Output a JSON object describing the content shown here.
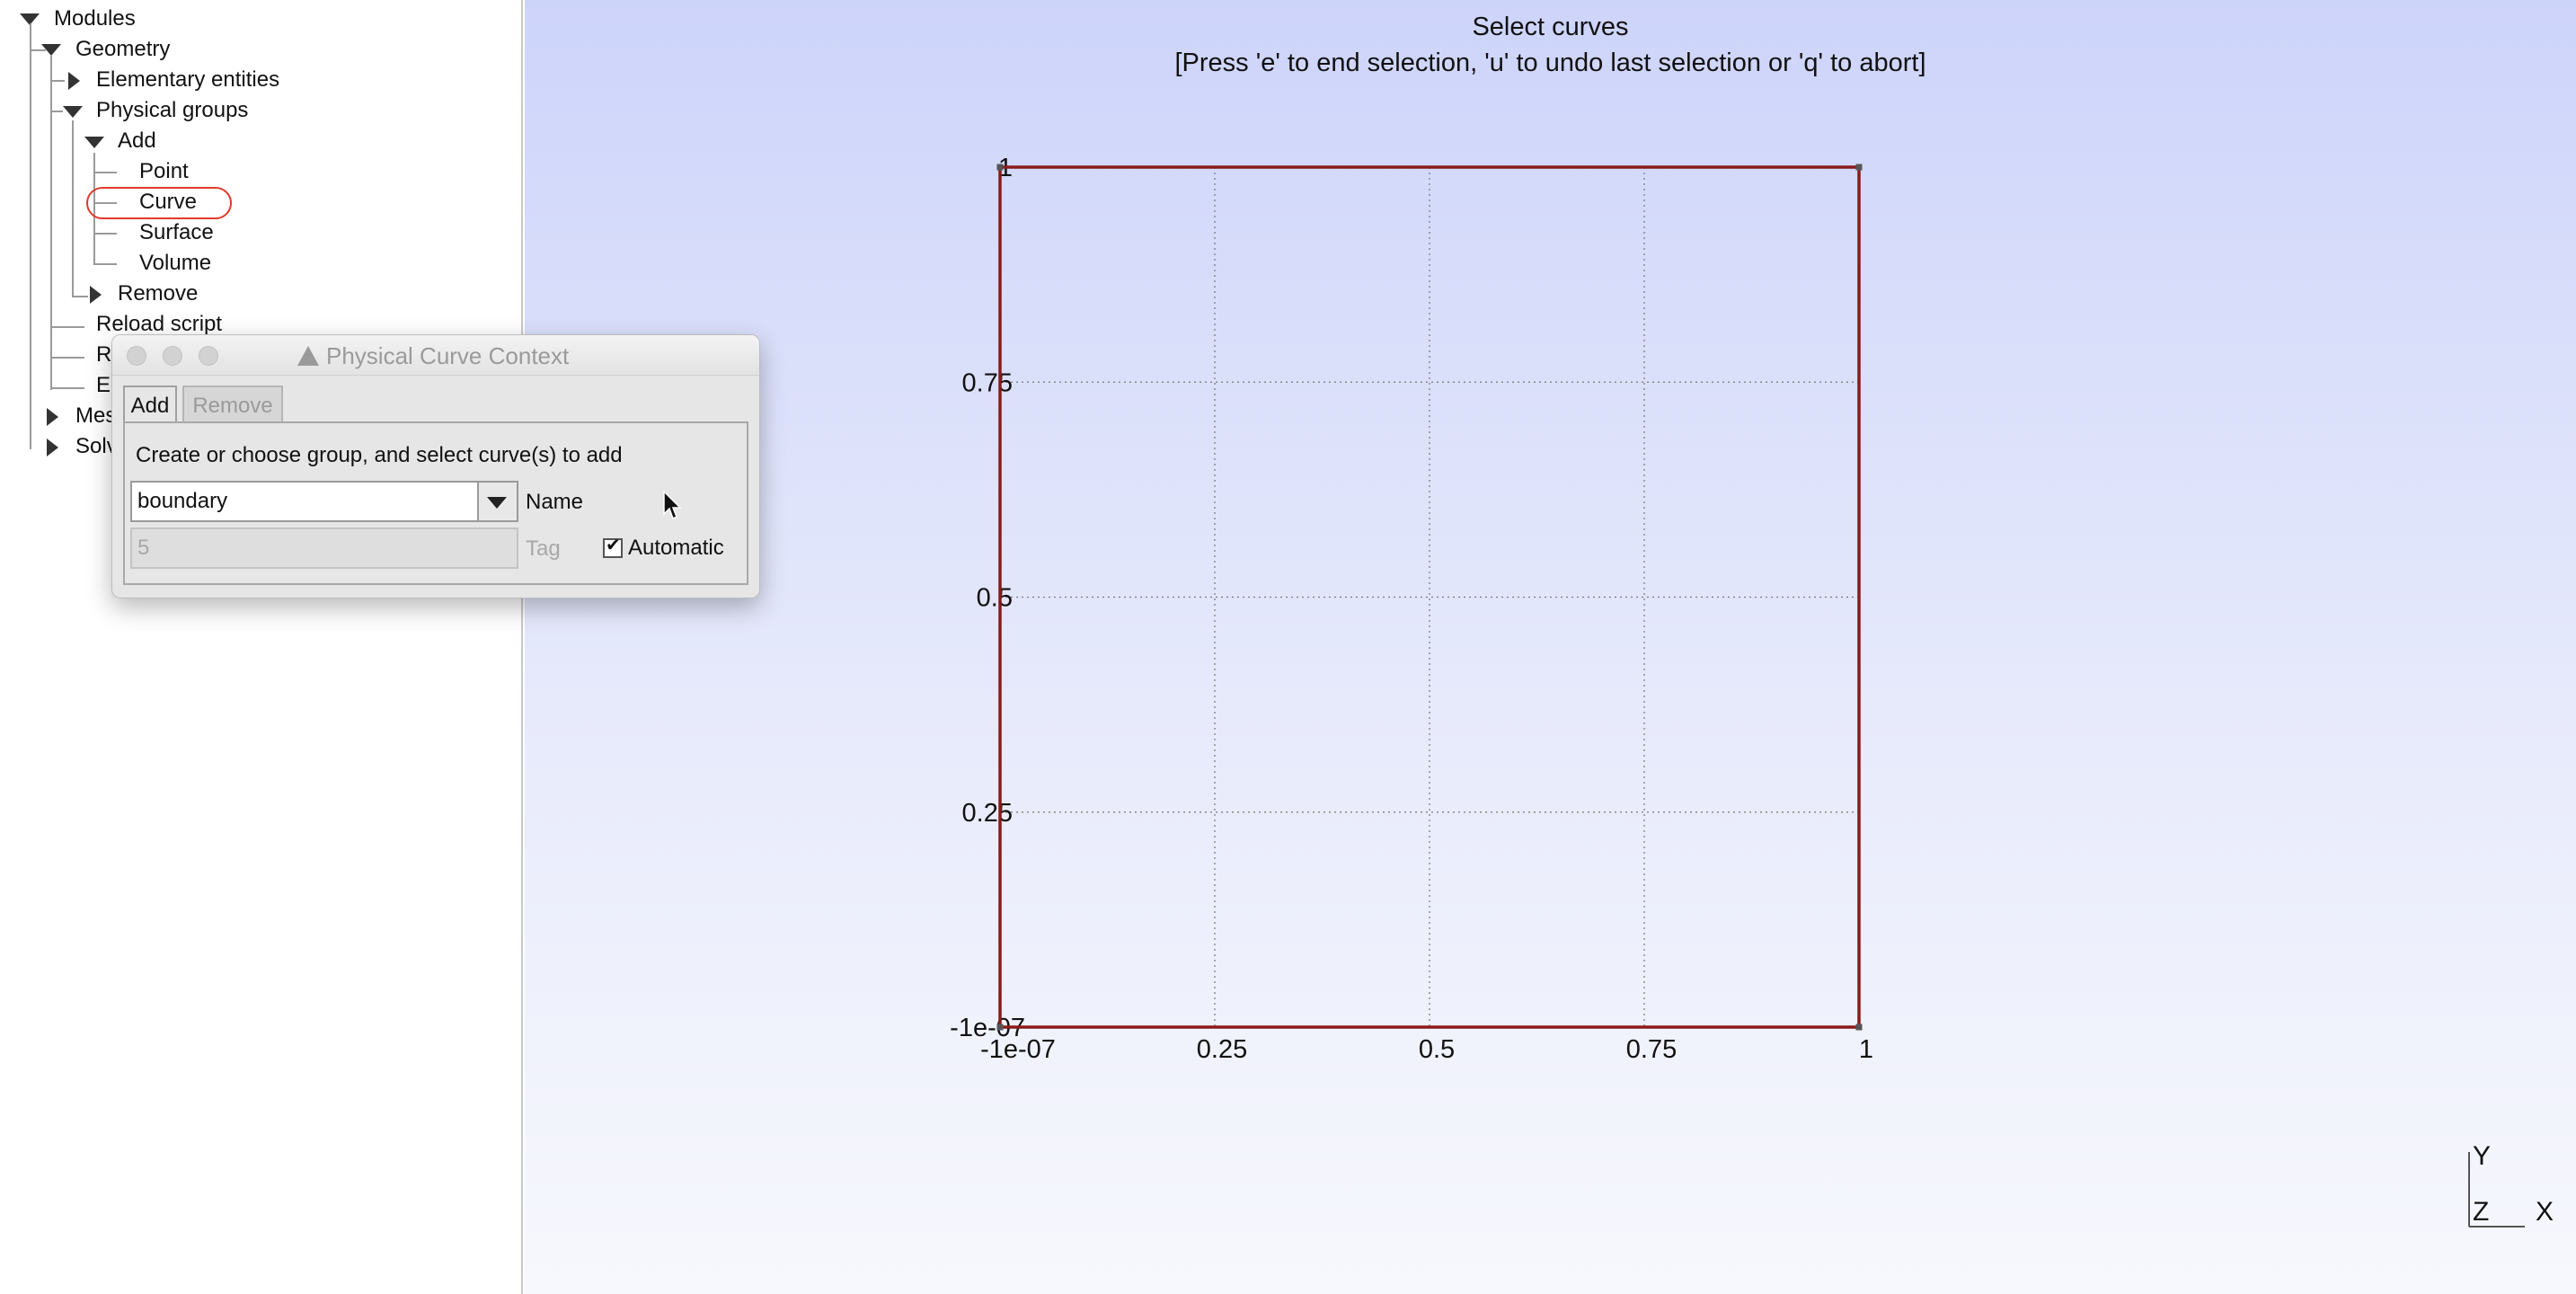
{
  "tree": {
    "items": [
      {
        "label": "Modules"
      },
      {
        "label": "Geometry"
      },
      {
        "label": "Elementary entities"
      },
      {
        "label": "Physical groups"
      },
      {
        "label": "Add"
      },
      {
        "label": "Point"
      },
      {
        "label": "Curve"
      },
      {
        "label": "Surface"
      },
      {
        "label": "Volume"
      },
      {
        "label": "Remove"
      },
      {
        "label": "Reload script"
      },
      {
        "label": "R"
      },
      {
        "label": "E"
      },
      {
        "label": "Mes"
      },
      {
        "label": "Solv"
      }
    ],
    "selected": "Curve",
    "highlight_color": "#e0392b"
  },
  "graphics": {
    "title": "Select curves",
    "subtitle": "[Press 'e' to end selection, 'u' to undo last selection or 'q' to abort]",
    "gizmo": {
      "y": "Y",
      "z": "Z",
      "x": "X"
    }
  },
  "chart_data": {
    "type": "line",
    "title": "",
    "xlabel": "",
    "ylabel": "",
    "x_ticks": [
      "-1e-07",
      "0.25",
      "0.5",
      "0.75",
      "1"
    ],
    "y_ticks": [
      "1",
      "0.75",
      "0.5",
      "0.25",
      "-1e-07"
    ],
    "xlim": [
      0,
      1
    ],
    "ylim": [
      0,
      1
    ],
    "grid": true,
    "series": [
      {
        "x": [
          0,
          1,
          1,
          0,
          0
        ],
        "y": [
          0,
          0,
          1,
          1,
          0
        ],
        "color": "#8b1a1a"
      }
    ]
  },
  "dialog": {
    "title": "Physical Curve Context",
    "tabs": [
      "Add",
      "Remove"
    ],
    "active_tab": "Add",
    "instruction": "Create or choose group, and select curve(s) to add",
    "name_value": "boundary",
    "name_label": "Name",
    "tag_value": "5",
    "tag_label": "Tag",
    "automatic_label": "Automatic",
    "automatic_checked": true
  }
}
